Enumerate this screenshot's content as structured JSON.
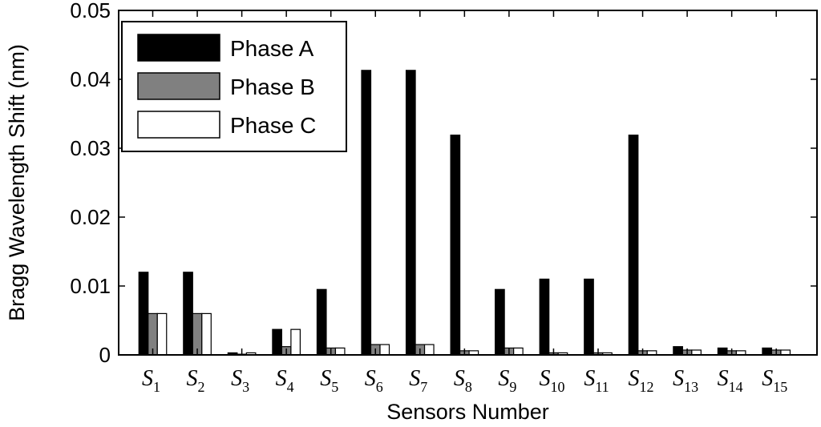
{
  "chart_data": {
    "type": "bar",
    "xlabel": "Sensors Number",
    "ylabel": "Bragg Wavelength Shift (nm)",
    "ylim": [
      0,
      0.05
    ],
    "yticks": [
      "0",
      "0.01",
      "0.02",
      "0.03",
      "0.04",
      "0.05"
    ],
    "categories": [
      {
        "letter": "S",
        "sub": "1"
      },
      {
        "letter": "S",
        "sub": "2"
      },
      {
        "letter": "S",
        "sub": "3"
      },
      {
        "letter": "S",
        "sub": "4"
      },
      {
        "letter": "S",
        "sub": "5"
      },
      {
        "letter": "S",
        "sub": "6"
      },
      {
        "letter": "S",
        "sub": "7"
      },
      {
        "letter": "S",
        "sub": "8"
      },
      {
        "letter": "S",
        "sub": "9"
      },
      {
        "letter": "S",
        "sub": "10"
      },
      {
        "letter": "S",
        "sub": "11"
      },
      {
        "letter": "S",
        "sub": "12"
      },
      {
        "letter": "S",
        "sub": "13"
      },
      {
        "letter": "S",
        "sub": "14"
      },
      {
        "letter": "S",
        "sub": "15"
      }
    ],
    "series": [
      {
        "name": "Phase A",
        "color": "#000000",
        "values": [
          0.012,
          0.012,
          0.0003,
          0.0037,
          0.0095,
          0.0413,
          0.0413,
          0.0319,
          0.0095,
          0.011,
          0.011,
          0.0319,
          0.0012,
          0.001,
          0.001
        ]
      },
      {
        "name": "Phase B",
        "color": "#808080",
        "values": [
          0.006,
          0.006,
          0.0001,
          0.0012,
          0.001,
          0.0015,
          0.0015,
          0.0006,
          0.001,
          0.0003,
          0.0003,
          0.0006,
          0.0007,
          0.0006,
          0.0007
        ]
      },
      {
        "name": "Phase C",
        "color": "#ffffff",
        "values": [
          0.006,
          0.006,
          0.0003,
          0.0037,
          0.001,
          0.0015,
          0.0015,
          0.0006,
          0.001,
          0.0003,
          0.0003,
          0.0006,
          0.0007,
          0.0006,
          0.0007
        ]
      }
    ],
    "grid": false,
    "legend": "top-left"
  }
}
